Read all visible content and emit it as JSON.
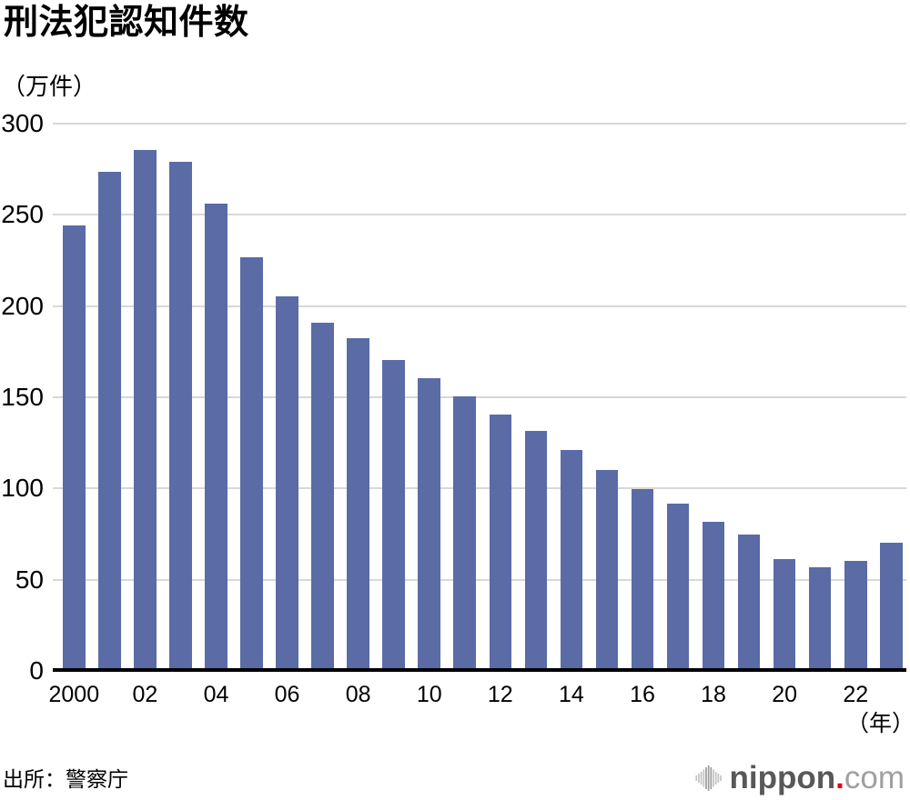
{
  "header": {
    "title": "刑法犯認知件数"
  },
  "chart_data": {
    "type": "bar",
    "title": "刑法犯認知件数",
    "unit_label": "（万件）",
    "x_axis_suffix": "（年）",
    "categories": [
      2000,
      2001,
      2002,
      2003,
      2004,
      2005,
      2006,
      2007,
      2008,
      2009,
      2010,
      2011,
      2012,
      2013,
      2014,
      2015,
      2016,
      2017,
      2018,
      2019,
      2020,
      2021,
      2022,
      2023
    ],
    "values": [
      244.3,
      273.5,
      285.4,
      279.0,
      256.3,
      226.9,
      205.1,
      190.9,
      182.6,
      170.3,
      160.4,
      150.3,
      140.3,
      131.4,
      121.2,
      109.9,
      99.6,
      91.5,
      81.7,
      74.9,
      61.4,
      56.8,
      60.1,
      70.3
    ],
    "x_tick_labels": [
      "2000",
      "02",
      "04",
      "06",
      "08",
      "10",
      "12",
      "14",
      "16",
      "18",
      "20",
      "22"
    ],
    "x_tick_every": 2,
    "yticks": [
      300,
      250,
      200,
      150,
      100,
      50,
      0
    ],
    "ylim": [
      0,
      300
    ],
    "grid": true,
    "legend_position": "none",
    "bar_color": "#5a6ba6",
    "gridline_color": "#d8d8d8",
    "axis_color": "#000000"
  },
  "footer": {
    "source": "出所：警察庁",
    "logo": {
      "main": "nippon",
      "dot": ".",
      "suffix": "com",
      "main_color": "#595757",
      "dot_color": "#e60012",
      "suffix_color": "#9fa0a0",
      "icon": "soundwave-icon"
    }
  }
}
